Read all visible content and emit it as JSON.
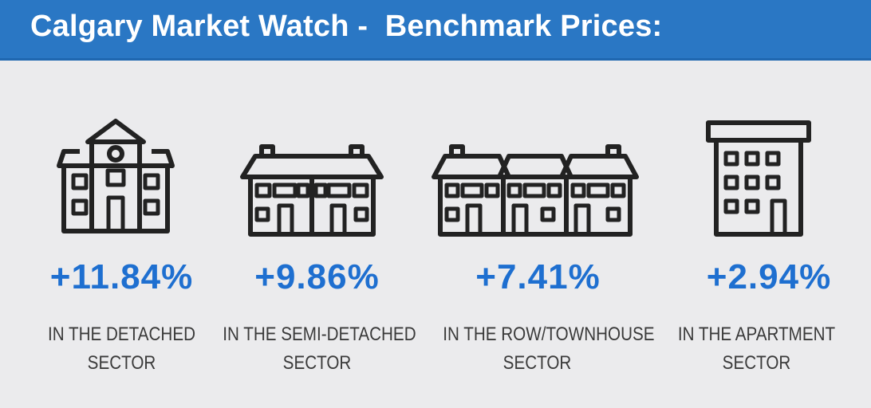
{
  "header": {
    "title": "Calgary Market Watch -  Benchmark Prices:"
  },
  "colors": {
    "header_bg": "#2a77c4",
    "percent_text": "#1e6fd0",
    "icon_stroke": "#222222",
    "background": "#ebebed"
  },
  "sectors": [
    {
      "icon": "detached-house-icon",
      "change": "+11.84%",
      "line1": "IN THE DETACHED",
      "line2": "SECTOR"
    },
    {
      "icon": "semi-detached-house-icon",
      "change": "+9.86%",
      "line1": "IN THE SEMI-DETACHED",
      "line2": "SECTOR"
    },
    {
      "icon": "row-townhouse-icon",
      "change": "+7.41%",
      "line1": "IN THE ROW/TOWNHOUSE",
      "line2": "SECTOR"
    },
    {
      "icon": "apartment-building-icon",
      "change": "+2.94%",
      "line1": "IN THE APARTMENT",
      "line2": "SECTOR"
    }
  ]
}
